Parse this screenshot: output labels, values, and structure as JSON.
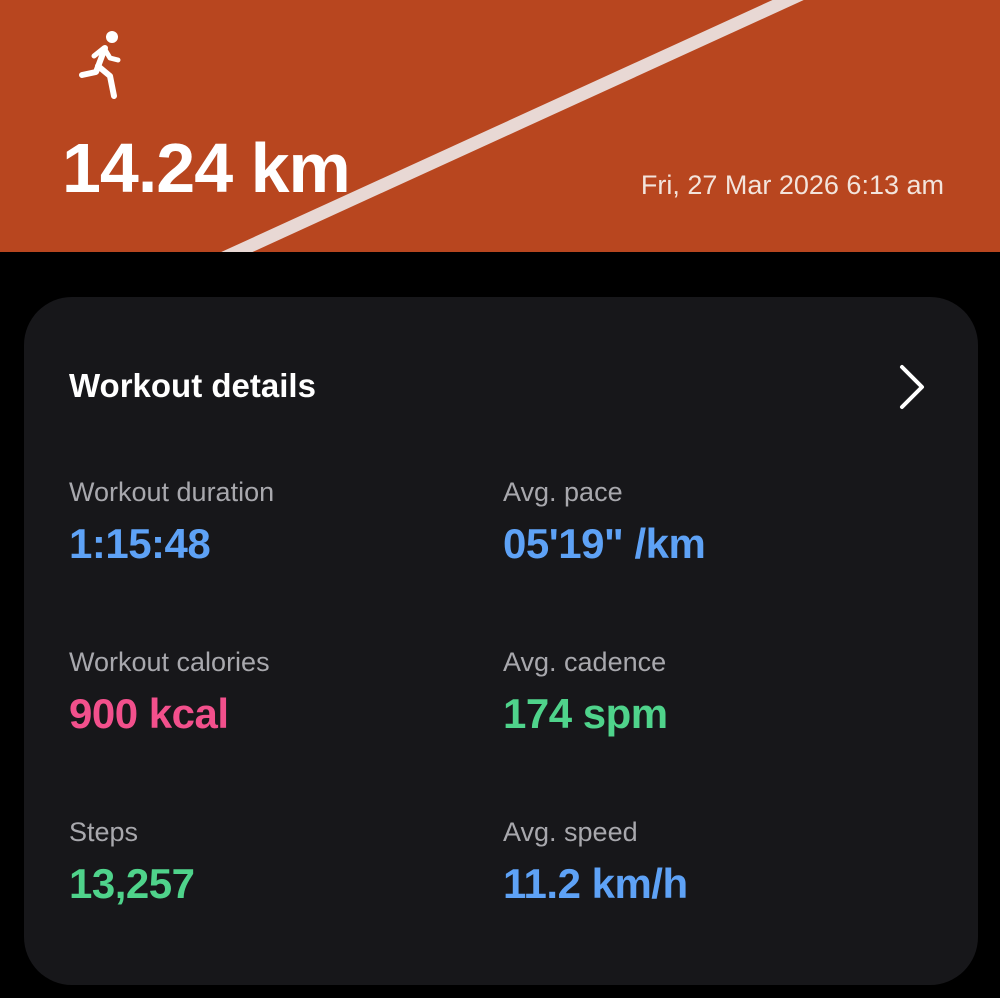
{
  "header": {
    "activity_icon": "running-person-icon",
    "distance": "14.24 km",
    "datetime": "Fri, 27 Mar 2026 6:13 am",
    "background_color": "#b8461f"
  },
  "card": {
    "title": "Workout details",
    "chevron_icon": "chevron-right-icon",
    "metrics": [
      {
        "label": "Workout duration",
        "value": "1:15:48",
        "color": "#5ea2f6"
      },
      {
        "label": "Avg. pace",
        "value": "05'19\" /km",
        "color": "#5ea2f6"
      },
      {
        "label": "Workout calories",
        "value": "900 kcal",
        "color": "#f2508c"
      },
      {
        "label": "Avg. cadence",
        "value": "174 spm",
        "color": "#4fd38b"
      },
      {
        "label": "Steps",
        "value": "13,257",
        "color": "#4fd38b"
      },
      {
        "label": "Avg. speed",
        "value": "11.2 km/h",
        "color": "#5ea2f6"
      }
    ]
  }
}
